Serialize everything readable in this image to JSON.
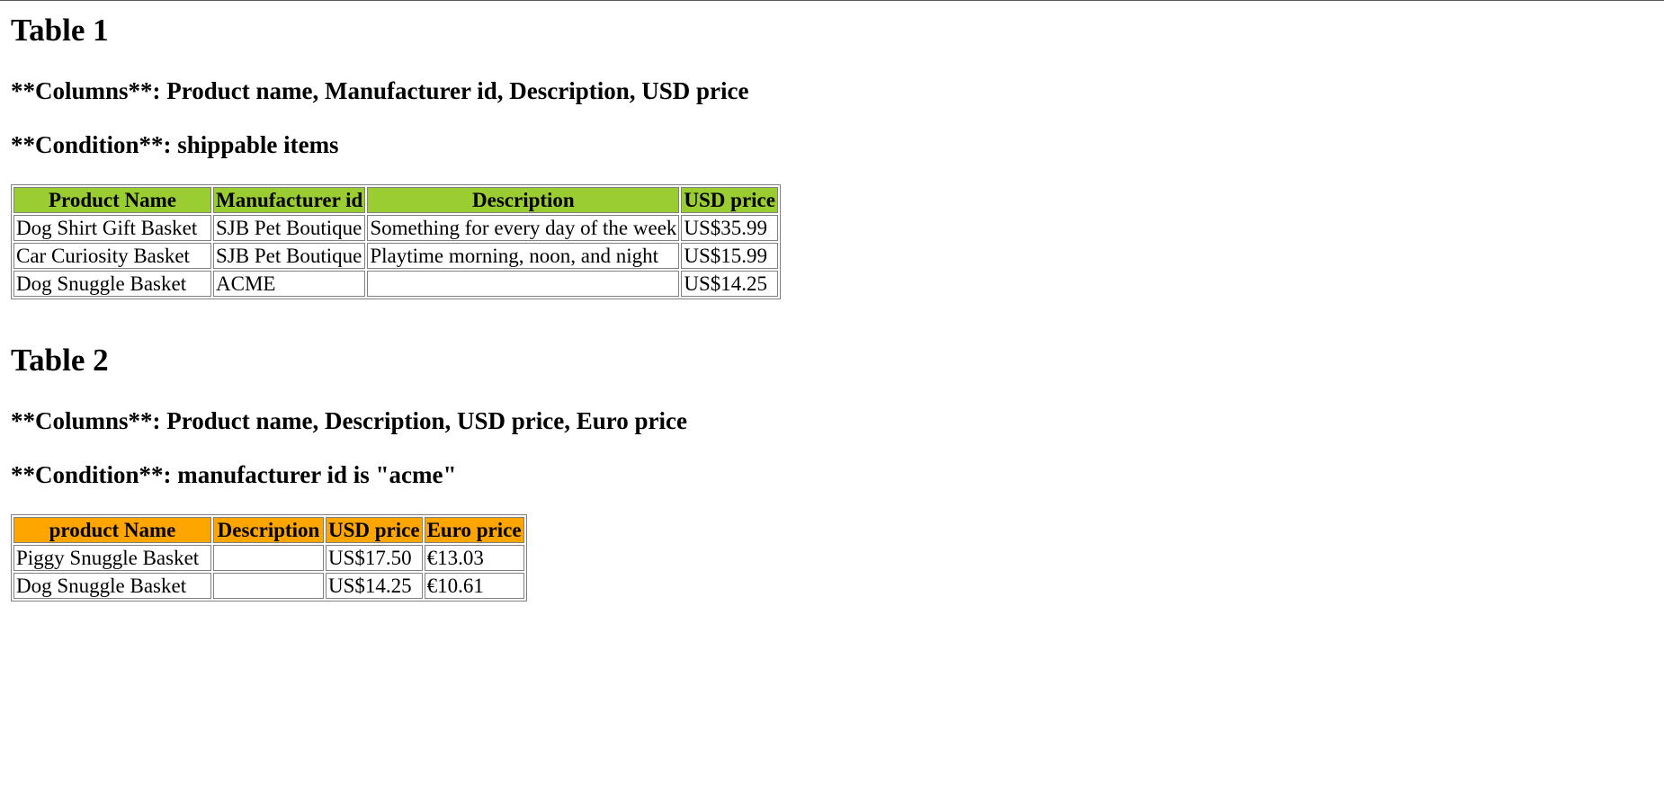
{
  "table1": {
    "title": "Table 1",
    "columns_line": "**Columns**: Product name, Manufacturer id, Description, USD price",
    "condition_line": "**Condition**: shippable items",
    "header_color": "#9acd32",
    "headers": [
      "Product Name",
      "Manufacturer id",
      "Description",
      "USD price"
    ],
    "rows": [
      [
        "Dog Shirt Gift Basket",
        "SJB Pet Boutique",
        "Something for every day of the week",
        "US$35.99"
      ],
      [
        "Car Curiosity Basket",
        "SJB Pet Boutique",
        "Playtime morning, noon, and night",
        "US$15.99"
      ],
      [
        "Dog Snuggle Basket",
        "ACME",
        "",
        "US$14.25"
      ]
    ]
  },
  "table2": {
    "title": "Table 2",
    "columns_line": "**Columns**: Product name, Description, USD price, Euro price",
    "condition_line": "**Condition**: manufacturer id is \"acme\"",
    "header_color": "#ffa500",
    "headers": [
      "product Name",
      "Description",
      "USD price",
      "Euro price"
    ],
    "rows": [
      [
        "Piggy Snuggle Basket",
        "",
        "US$17.50",
        "€13.03"
      ],
      [
        "Dog Snuggle Basket",
        "",
        "US$14.25",
        "€10.61"
      ]
    ]
  }
}
